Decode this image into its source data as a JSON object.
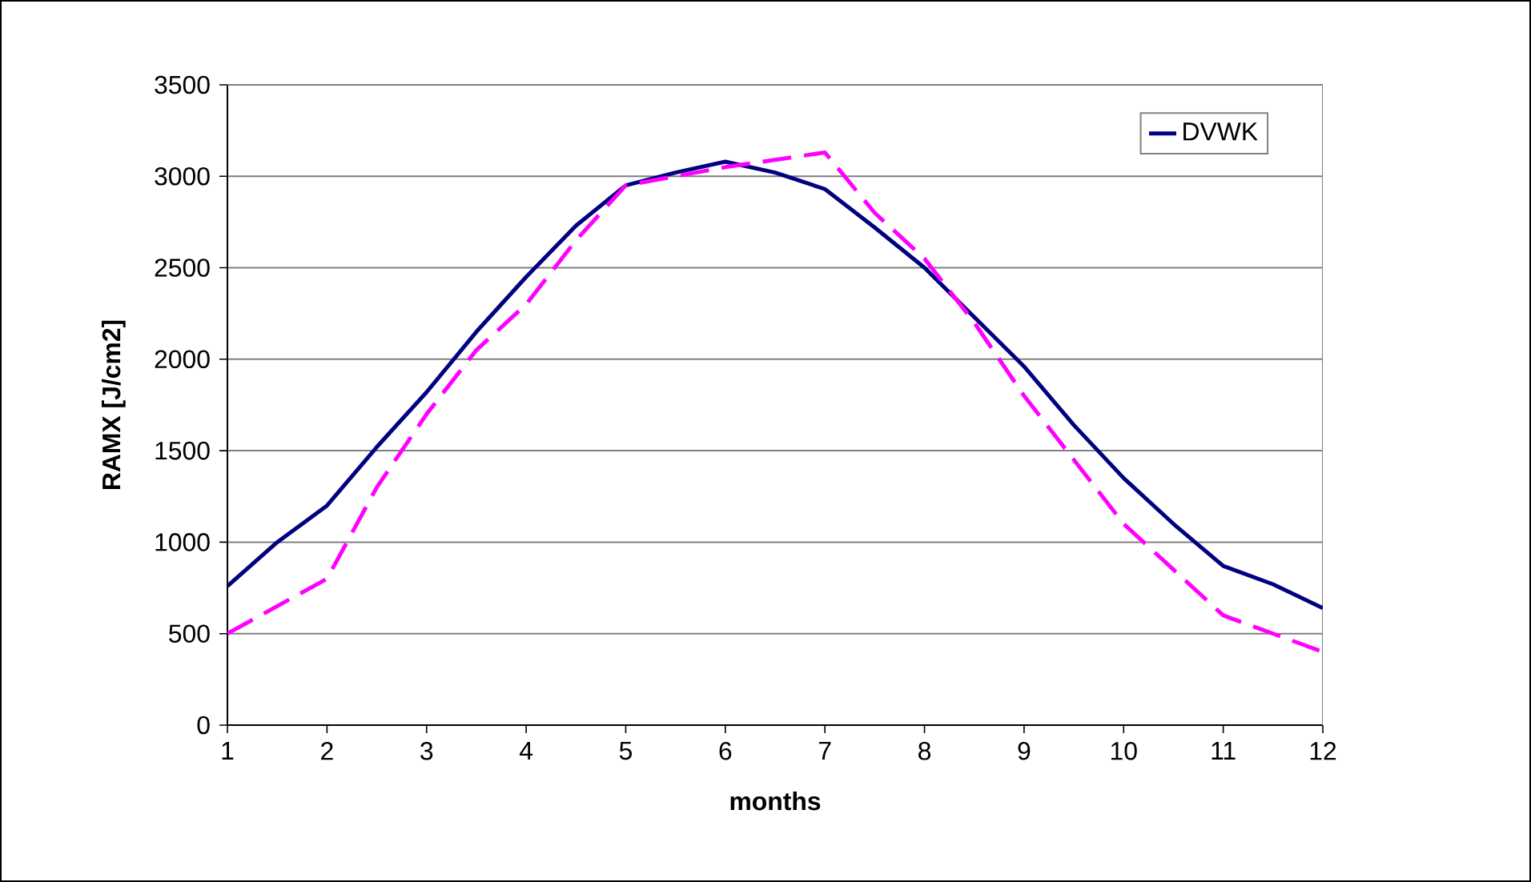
{
  "chart_data": {
    "type": "line",
    "xlabel": "months",
    "ylabel": "RAMX [J/cm2]",
    "xlim": [
      1,
      12
    ],
    "xticks": [
      1,
      2,
      3,
      4,
      5,
      6,
      7,
      8,
      9,
      10,
      11,
      12
    ],
    "ylim": [
      0,
      3500
    ],
    "yticks": [
      0,
      500,
      1000,
      1500,
      2000,
      2500,
      3000,
      3500
    ],
    "grid": "y",
    "legend": "top right",
    "series": [
      {
        "name": "DVWK",
        "color": "#000080",
        "line_style": "solid",
        "x": [
          1,
          1.5,
          2,
          2.5,
          3,
          3.5,
          4,
          4.5,
          5,
          5.5,
          6,
          6.5,
          7,
          7.5,
          8,
          8.5,
          9,
          9.5,
          10,
          10.5,
          11,
          11.5,
          12
        ],
        "values": [
          760,
          1000,
          1200,
          1520,
          1820,
          2150,
          2450,
          2730,
          2950,
          3020,
          3080,
          3020,
          2930,
          2720,
          2500,
          2230,
          1960,
          1640,
          1350,
          1100,
          870,
          770,
          640
        ]
      },
      {
        "color": "#ff00ff",
        "line_style": "dashed",
        "x": [
          1,
          2,
          2.5,
          3,
          3.5,
          4,
          4.5,
          5,
          6,
          7,
          7.5,
          8,
          8.5,
          9,
          9.5,
          10,
          10.5,
          11,
          12
        ],
        "values": [
          500,
          800,
          1300,
          1700,
          2050,
          2300,
          2650,
          2950,
          3050,
          3130,
          2800,
          2550,
          2200,
          1800,
          1450,
          1100,
          850,
          600,
          400
        ]
      }
    ]
  }
}
